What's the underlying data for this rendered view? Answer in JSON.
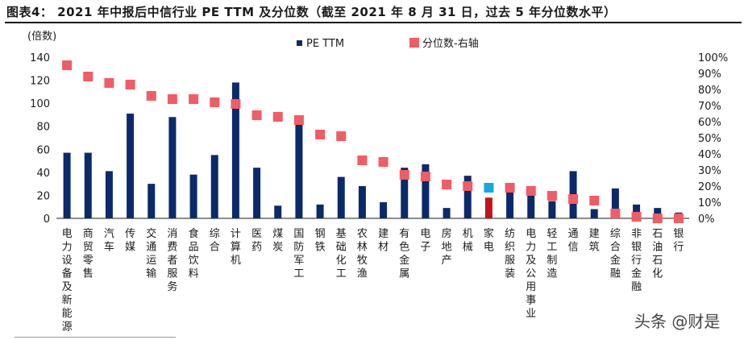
{
  "title": "图表4：  2021 年中报后中信行业 PE TTM 及分位数（截至 2021 年 8 月 31 日，过去 5 年分位数水平）",
  "watermark": "头条 @财是",
  "colors": {
    "bar": "#0b2a6b",
    "bar_highlight": "#c0141b",
    "marker": "#f25c64",
    "marker_highlight": "#17a8e0"
  },
  "chart_data": {
    "type": "bar",
    "title": "图表4：  2021 年中报后中信行业 PE TTM 及分位数（截至 2021 年 8 月 31 日，过去 5 年分位数水平）",
    "ylabel": "(倍数)",
    "ylim": [
      0,
      140
    ],
    "y_ticks": [
      0,
      20,
      40,
      60,
      80,
      100,
      120,
      140
    ],
    "y2lim": [
      0,
      100
    ],
    "y2_ticks": [
      "0%",
      "10%",
      "20%",
      "30%",
      "40%",
      "50%",
      "60%",
      "70%",
      "80%",
      "90%",
      "100%"
    ],
    "legend": {
      "placement": "top-center",
      "entries": [
        "PE TTM",
        "分位数-右轴"
      ]
    },
    "categories": [
      "电力设备及新能源",
      "商贸零售",
      "汽车",
      "传媒",
      "交通运输",
      "消费者服务",
      "食品饮料",
      "综合",
      "计算机",
      "医药",
      "煤炭",
      "国防军工",
      "钢铁",
      "基础化工",
      "农林牧渔",
      "建材",
      "有色金属",
      "电子",
      "房地产",
      "机械",
      "家电",
      "纺织服装",
      "电力及公用事业",
      "轻工制造",
      "通信",
      "建筑",
      "综合金融",
      "非银行金融",
      "石油石化",
      "银行"
    ],
    "highlight_category": "家电",
    "series": [
      {
        "name": "PE TTM",
        "type": "bar",
        "axis": "left",
        "values": [
          57,
          57,
          41,
          91,
          30,
          88,
          38,
          55,
          118,
          44,
          11,
          82,
          12,
          36,
          28,
          14,
          44,
          47,
          9,
          37,
          18,
          25,
          20,
          15,
          41,
          8,
          26,
          12,
          9,
          5
        ]
      },
      {
        "name": "分位数-右轴",
        "type": "marker",
        "axis": "right",
        "values": [
          95,
          88,
          84,
          83,
          76,
          74,
          74,
          72,
          71,
          64,
          63,
          61,
          52,
          51,
          36,
          35,
          27,
          26,
          21,
          20,
          19,
          19,
          17,
          14,
          12,
          11,
          3,
          1,
          0,
          0
        ]
      }
    ]
  }
}
